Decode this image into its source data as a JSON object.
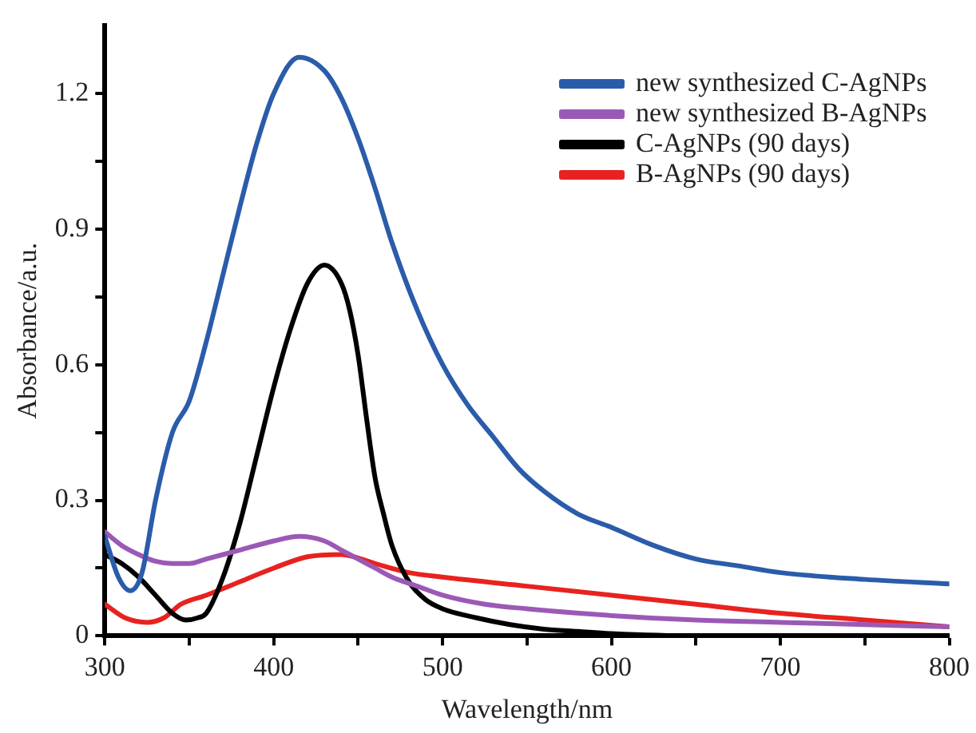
{
  "chart_data": {
    "type": "line",
    "xlabel": "Wavelength/nm",
    "ylabel": "Absorbance/a.u.",
    "xlim": [
      300,
      800
    ],
    "ylim": [
      0,
      1.35
    ],
    "xticks": [
      300,
      {
        "value": 350,
        "label": null
      },
      400,
      {
        "value": 450,
        "label": null
      },
      500,
      {
        "value": 550,
        "label": null
      },
      600,
      {
        "value": 650,
        "label": null
      },
      700,
      {
        "value": 750,
        "label": null
      },
      800
    ],
    "yticks": [
      0,
      {
        "value": 0.15,
        "label": null
      },
      0.3,
      {
        "value": 0.45,
        "label": null
      },
      0.6,
      {
        "value": 0.75,
        "label": null
      },
      0.9,
      {
        "value": 1.05,
        "label": null
      },
      1.2
    ],
    "grid": false,
    "legend": "top right",
    "marker": "none",
    "line_style": "solid",
    "series": [
      {
        "name": "new synthesized C-AgNPs",
        "color": "#2a5caa",
        "x": [
          300,
          308,
          315,
          322,
          330,
          340,
          350,
          360,
          370,
          380,
          390,
          400,
          415,
          430,
          440,
          450,
          460,
          470,
          485,
          500,
          515,
          530,
          545,
          560,
          580,
          600,
          625,
          650,
          675,
          700,
          750,
          800
        ],
        "values": [
          0.22,
          0.13,
          0.1,
          0.14,
          0.3,
          0.45,
          0.52,
          0.65,
          0.8,
          0.95,
          1.09,
          1.2,
          1.28,
          1.25,
          1.19,
          1.1,
          0.99,
          0.87,
          0.72,
          0.6,
          0.51,
          0.44,
          0.37,
          0.32,
          0.27,
          0.24,
          0.2,
          0.17,
          0.155,
          0.14,
          0.125,
          0.115
        ]
      },
      {
        "name": "new synthesized B-AgNPs",
        "color": "#9b59b6",
        "x": [
          300,
          310,
          320,
          330,
          340,
          350,
          360,
          380,
          400,
          415,
          430,
          440,
          450,
          460,
          470,
          485,
          500,
          525,
          550,
          600,
          650,
          700,
          750,
          800
        ],
        "values": [
          0.23,
          0.2,
          0.18,
          0.165,
          0.16,
          0.16,
          0.17,
          0.19,
          0.21,
          0.22,
          0.21,
          0.19,
          0.17,
          0.15,
          0.13,
          0.11,
          0.09,
          0.07,
          0.06,
          0.045,
          0.035,
          0.03,
          0.025,
          0.02
        ]
      },
      {
        "name": "C-AgNPs (90 days)",
        "color": "#000000",
        "x": [
          300,
          310,
          320,
          330,
          340,
          348,
          355,
          360,
          370,
          380,
          390,
          400,
          410,
          420,
          430,
          440,
          445,
          450,
          455,
          460,
          465,
          470,
          480,
          490,
          500,
          520,
          540,
          560,
          580,
          600,
          650,
          700,
          750,
          800
        ],
        "values": [
          0.18,
          0.16,
          0.13,
          0.09,
          0.05,
          0.035,
          0.04,
          0.05,
          0.13,
          0.25,
          0.4,
          0.55,
          0.68,
          0.78,
          0.82,
          0.78,
          0.72,
          0.62,
          0.48,
          0.35,
          0.27,
          0.2,
          0.12,
          0.08,
          0.06,
          0.04,
          0.025,
          0.015,
          0.01,
          0.005,
          0,
          0,
          0,
          0
        ]
      },
      {
        "name": "B-AgNPs (90 days)",
        "color": "#e8221f",
        "x": [
          300,
          312,
          325,
          335,
          345,
          360,
          380,
          400,
          420,
          440,
          460,
          480,
          500,
          550,
          600,
          650,
          700,
          750,
          800
        ],
        "values": [
          0.07,
          0.04,
          0.03,
          0.04,
          0.07,
          0.09,
          0.12,
          0.15,
          0.175,
          0.18,
          0.16,
          0.14,
          0.13,
          0.11,
          0.09,
          0.07,
          0.05,
          0.035,
          0.02
        ]
      }
    ]
  }
}
